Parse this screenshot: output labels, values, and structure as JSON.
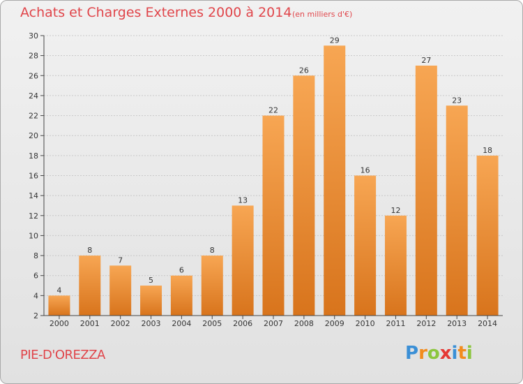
{
  "title": "Achats et Charges Externes 2000 à 2014",
  "unit": "(en milliers d'€)",
  "commune": "PIE-D'OREZZA",
  "logo": {
    "letters": [
      "P",
      "r",
      "o",
      "x",
      "i",
      "t",
      "i"
    ],
    "colors": [
      "#3a8fd6",
      "#f28c1e",
      "#8cc63f",
      "#e53935",
      "#3a8fd6",
      "#f28c1e",
      "#8cc63f"
    ]
  },
  "colors": {
    "title": "#e0454a",
    "bar_top": "#f7a653",
    "bar_bottom": "#d8741c",
    "grid": "#c8c8c8",
    "axis": "#444444"
  },
  "chart_data": {
    "type": "bar",
    "categories": [
      "2000",
      "2001",
      "2002",
      "2003",
      "2004",
      "2005",
      "2006",
      "2007",
      "2008",
      "2009",
      "2010",
      "2011",
      "2012",
      "2013",
      "2014"
    ],
    "values": [
      4,
      8,
      7,
      5,
      6,
      8,
      13,
      22,
      26,
      29,
      16,
      12,
      27,
      23,
      18
    ],
    "title": "Achats et Charges Externes 2000 à 2014",
    "xlabel": "",
    "ylabel": "",
    "ylim": [
      2,
      30
    ],
    "yticks": [
      2,
      4,
      6,
      8,
      10,
      12,
      14,
      16,
      18,
      20,
      22,
      24,
      26,
      28,
      30
    ],
    "grid": true,
    "data_labels": true
  }
}
